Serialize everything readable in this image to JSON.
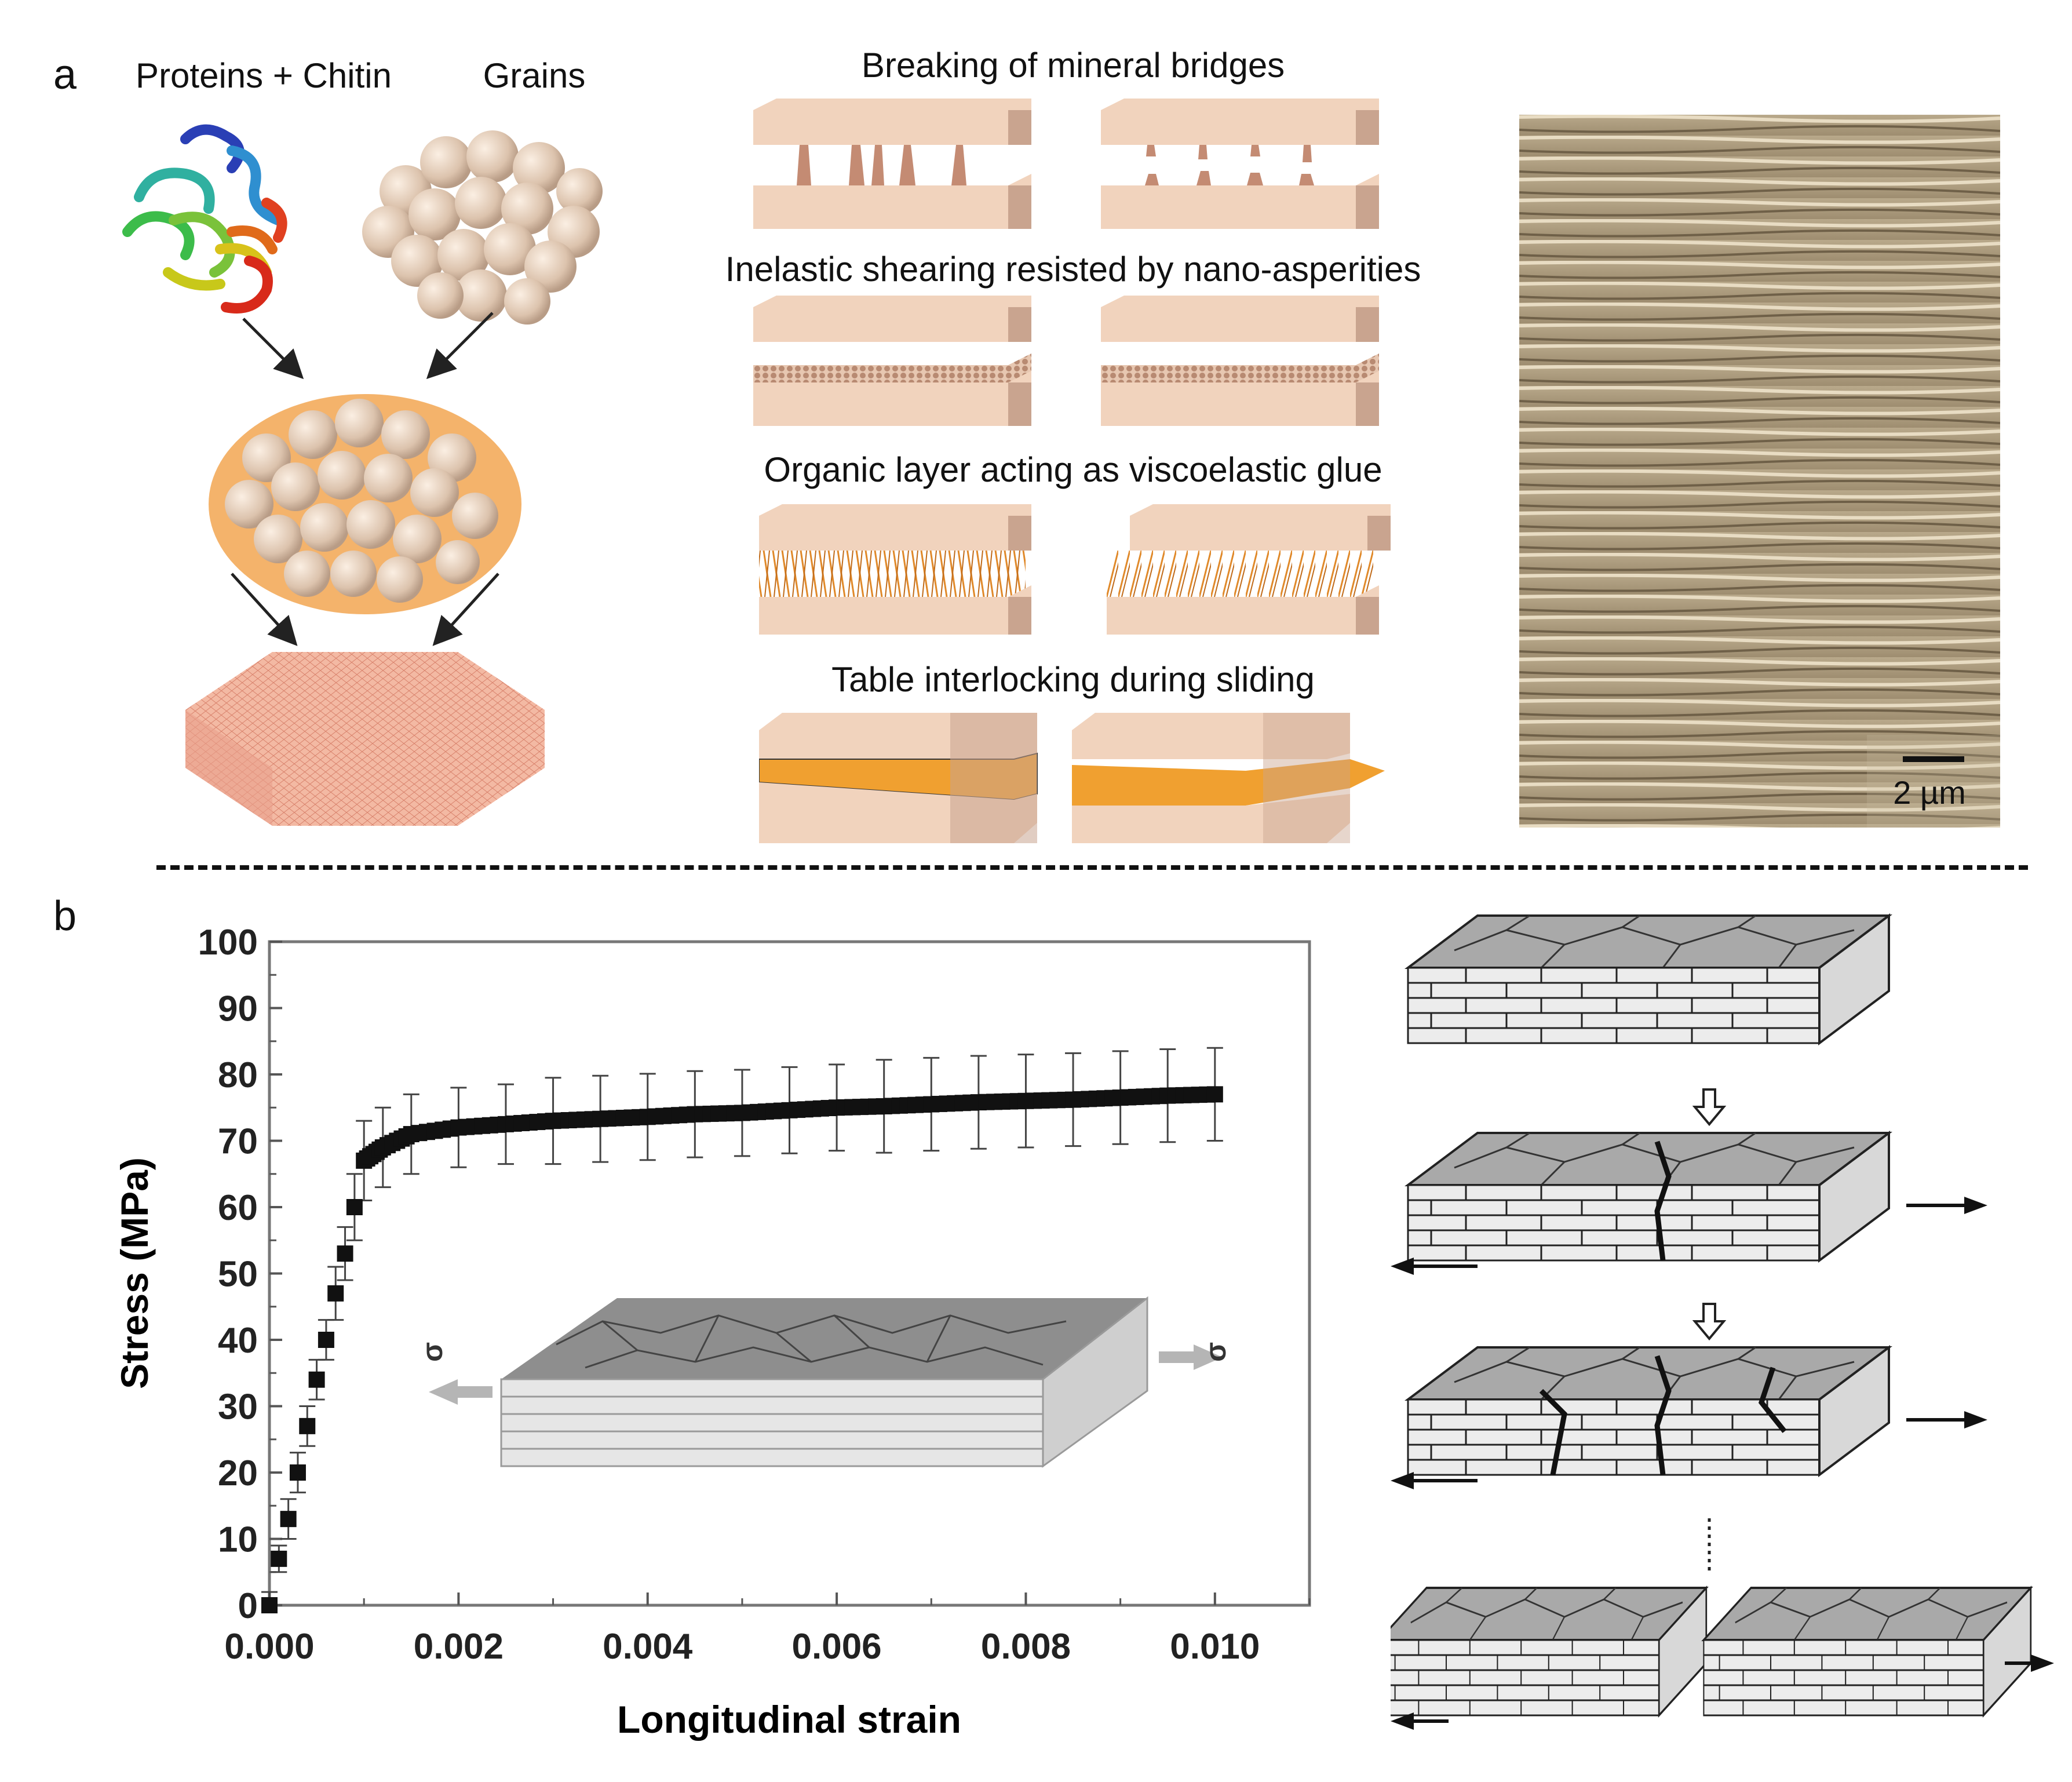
{
  "panel_a": {
    "letter": "a",
    "left": {
      "protein_label": "Proteins + Chitin",
      "grains_label": "Grains"
    },
    "mechanisms": [
      "Breaking of mineral bridges",
      "Inelastic shearing resisted by nano-asperities",
      "Organic layer acting as viscoelastic glue",
      "Table interlocking during sliding"
    ],
    "sem": {
      "scale_label": "2 µm"
    }
  },
  "panel_b": {
    "letter": "b",
    "inset_sigma_left": "σ",
    "inset_sigma_right": "σ"
  },
  "colors": {
    "tablet_top": "#f1d3bd",
    "tablet_side": "#c9a48f",
    "organic": "#f0a030",
    "sem_base": "#a8987a",
    "schematic_gray": "#a9a9a9"
  },
  "chart_data": {
    "type": "line",
    "xlabel": "Longitudinal strain",
    "ylabel": "Stress (MPa)",
    "xlim": [
      0,
      0.011
    ],
    "ylim": [
      0,
      100
    ],
    "xticks": [
      "0.000",
      "0.002",
      "0.004",
      "0.006",
      "0.008",
      "0.010"
    ],
    "yticks": [
      "0",
      "10",
      "20",
      "30",
      "40",
      "50",
      "60",
      "70",
      "80",
      "90",
      "100"
    ],
    "series": [
      {
        "x": [
          0.0,
          0.0001,
          0.0002,
          0.0003,
          0.0004,
          0.0005,
          0.0006,
          0.0007,
          0.0008,
          0.0009,
          0.001,
          0.0012,
          0.0015,
          0.002,
          0.0025,
          0.003,
          0.0035,
          0.004,
          0.0045,
          0.005,
          0.0055,
          0.006,
          0.0065,
          0.007,
          0.0075,
          0.008,
          0.0085,
          0.009,
          0.0095,
          0.01
        ],
        "y": [
          0,
          7,
          13,
          20,
          27,
          34,
          40,
          47,
          53,
          60,
          67,
          69,
          71,
          72,
          72.5,
          73,
          73.3,
          73.6,
          74,
          74.2,
          74.6,
          75,
          75.2,
          75.5,
          75.8,
          76,
          76.2,
          76.5,
          76.8,
          77
        ],
        "error": [
          2,
          2,
          3,
          3,
          3,
          3,
          3,
          4,
          4,
          5,
          6,
          6,
          6,
          6,
          6,
          6.5,
          6.5,
          6.5,
          6.5,
          6.5,
          6.5,
          6.5,
          7,
          7,
          7,
          7,
          7,
          7,
          7,
          7
        ]
      }
    ],
    "grid": false,
    "legend": "none"
  }
}
